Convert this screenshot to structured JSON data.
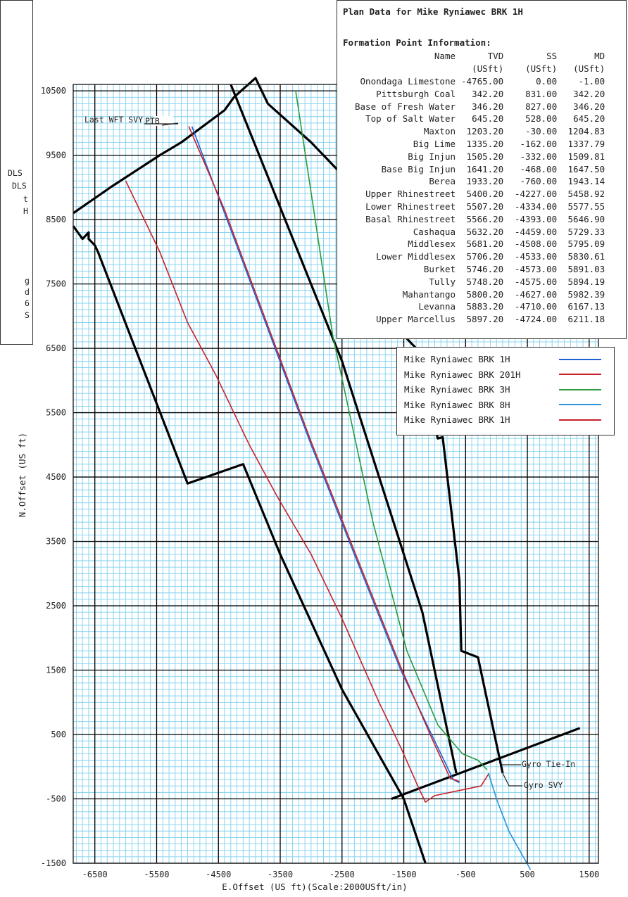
{
  "chart_data": {
    "type": "line",
    "xlabel": "E.Offset (US ft)(Scale:2000USft/in)",
    "ylabel": "N.Offset (US ft)",
    "xlim": [
      -6850,
      1650
    ],
    "ylim": [
      -1500,
      10600
    ],
    "x_ticks": [
      "-6500",
      "-5500",
      "-4500",
      "-3500",
      "-2500",
      "-1500",
      "-500",
      "500",
      "1500"
    ],
    "y_ticks": [
      "10500",
      "9500",
      "8500",
      "7500",
      "6500",
      "5500",
      "4500",
      "3500",
      "2500",
      "1500",
      "500",
      "-500",
      "-1500"
    ],
    "grid": true,
    "series": [
      {
        "name": "Mike Ryniawec BRK 1H",
        "color": "#1f5fd1",
        "x": [
          -4930,
          -4400,
          -3700,
          -3000,
          -2300,
          -1550,
          -1000,
          -700,
          -600
        ],
        "y": [
          9950,
          8600,
          6800,
          5000,
          3300,
          1500,
          400,
          -200,
          -250
        ]
      },
      {
        "name": "Mike Ryniawec BRK 201H",
        "color": "#c8202a",
        "x": [
          -6000,
          -5450,
          -5000,
          -4550,
          -4000,
          -3550,
          -3000,
          -2500,
          -1900,
          -1550,
          -1250,
          -1150,
          -1000,
          -250,
          -120
        ],
        "y": [
          9100,
          8000,
          6900,
          6100,
          5000,
          4200,
          3300,
          2300,
          1000,
          300,
          -350,
          -550,
          -450,
          -300,
          -100
        ]
      },
      {
        "name": "Mike Ryniawec BRK 3H",
        "color": "#2a9a3c",
        "x": [
          -3250,
          -2650,
          -2000,
          -1450,
          -950,
          -550,
          -300,
          -150
        ],
        "y": [
          10500,
          6700,
          3800,
          1800,
          650,
          200,
          100,
          -50
        ]
      },
      {
        "name": "Mike Ryniawec BRK 8H",
        "color": "#2a93d5",
        "x": [
          -130,
          0,
          200,
          550
        ],
        "y": [
          -100,
          -500,
          -1000,
          -1600
        ]
      },
      {
        "name": "Mike Ryniawec BRK 1H",
        "color": "#c8202a",
        "x": [
          -4980,
          -4400,
          -3700,
          -3000,
          -2300,
          -1550,
          -1050,
          -750,
          -600
        ],
        "y": [
          9950,
          8650,
          6850,
          5050,
          3350,
          1550,
          450,
          -180,
          -230
        ]
      }
    ],
    "annotations": [
      "PTB",
      "Last WFT SVY",
      "Gyro Tie-In",
      "Gyro SVY"
    ]
  },
  "boundaries": [
    {
      "x": [
        -6850,
        -6250,
        -5450,
        -5100,
        -4400,
        -4250,
        -3900,
        -3700,
        -3000,
        -2500,
        -2000
      ],
      "y": [
        8600,
        9000,
        9500,
        9700,
        10200,
        10400,
        10700,
        10300,
        9700,
        9200,
        8700
      ]
    },
    {
      "x": [
        -6850,
        -6700,
        -6600,
        -6600,
        -6500,
        -6450,
        -5000,
        -4100,
        -3500,
        -2500,
        -1500,
        -1150
      ],
      "y": [
        8400,
        8200,
        8300,
        8200,
        8100,
        8000,
        4400,
        4700,
        3300,
        1200,
        -500,
        -1500
      ]
    },
    {
      "x": [
        -4300,
        -2500,
        -1200,
        -650
      ],
      "y": [
        10600,
        6300,
        2400,
        -100
      ]
    },
    {
      "x": [
        -1700,
        1350
      ],
      "y": [
        -500,
        600
      ]
    },
    {
      "x": [
        -1500,
        -1200,
        -1050,
        -950,
        -870,
        -600,
        -570,
        -300,
        100
      ],
      "y": [
        6700,
        6400,
        5500,
        5100,
        5120,
        2900,
        1800,
        1700,
        -100
      ]
    }
  ],
  "formation": {
    "title": "Plan Data for Mike Ryniawec BRK 1H",
    "subtitle": "Formation Point Information:",
    "header": {
      "name": "Name",
      "tvd": "TVD",
      "ss": "SS",
      "md": "MD"
    },
    "units": {
      "tvd": "(USft)",
      "ss": "(USft)",
      "md": "(USft)"
    },
    "rows": [
      {
        "name": "Onondaga Limestone",
        "tvd": "-4765.00",
        "ss": "0.00",
        "md": "-1.00"
      },
      {
        "name": "Pittsburgh Coal",
        "tvd": "342.20",
        "ss": "831.00",
        "md": "342.20"
      },
      {
        "name": "Base of Fresh Water",
        "tvd": "346.20",
        "ss": "827.00",
        "md": "346.20"
      },
      {
        "name": "Top of Salt Water",
        "tvd": "645.20",
        "ss": "528.00",
        "md": "645.20"
      },
      {
        "name": "Maxton",
        "tvd": "1203.20",
        "ss": "-30.00",
        "md": "1204.83"
      },
      {
        "name": "Big Lime",
        "tvd": "1335.20",
        "ss": "-162.00",
        "md": "1337.79"
      },
      {
        "name": "Big Injun",
        "tvd": "1505.20",
        "ss": "-332.00",
        "md": "1509.81"
      },
      {
        "name": "Base Big Injun",
        "tvd": "1641.20",
        "ss": "-468.00",
        "md": "1647.50"
      },
      {
        "name": "Berea",
        "tvd": "1933.20",
        "ss": "-760.00",
        "md": "1943.14"
      },
      {
        "name": "Upper Rhinestreet",
        "tvd": "5400.20",
        "ss": "-4227.00",
        "md": "5458.92"
      },
      {
        "name": "Lower Rhinestreet",
        "tvd": "5507.20",
        "ss": "-4334.00",
        "md": "5577.55"
      },
      {
        "name": "Basal Rhinestreet",
        "tvd": "5566.20",
        "ss": "-4393.00",
        "md": "5646.90"
      },
      {
        "name": "Cashaqua",
        "tvd": "5632.20",
        "ss": "-4459.00",
        "md": "5729.33"
      },
      {
        "name": "Middlesex",
        "tvd": "5681.20",
        "ss": "-4508.00",
        "md": "5795.09"
      },
      {
        "name": "Lower Middlesex",
        "tvd": "5706.20",
        "ss": "-4533.00",
        "md": "5830.61"
      },
      {
        "name": "Burket",
        "tvd": "5746.20",
        "ss": "-4573.00",
        "md": "5891.03"
      },
      {
        "name": "Tully",
        "tvd": "5748.20",
        "ss": "-4575.00",
        "md": "5894.19"
      },
      {
        "name": "Mahantango",
        "tvd": "5800.20",
        "ss": "-4627.00",
        "md": "5982.39"
      },
      {
        "name": "Levanna",
        "tvd": "5883.20",
        "ss": "-4710.00",
        "md": "6167.13"
      },
      {
        "name": "Upper Marcellus",
        "tvd": "5897.20",
        "ss": "-4724.00",
        "md": "6211.18"
      }
    ]
  },
  "legend": [
    {
      "label": "Mike Ryniawec BRK 1H",
      "color": "#1f5fd1"
    },
    {
      "label": "Mike Ryniawec BRK 201H",
      "color": "#c8202a"
    },
    {
      "label": "Mike Ryniawec BRK 3H",
      "color": "#2a9a3c"
    },
    {
      "label": "Mike Ryniawec BRK 8H",
      "color": "#2a93d5"
    },
    {
      "label": "Mike Ryniawec BRK 1H",
      "color": "#c8202a"
    }
  ],
  "left_panel": {
    "frag1": "DLS",
    "frag2": "DLS",
    "frag3": "t",
    "frag4": "H",
    "frag5": "g",
    "frag6": "d",
    "frag7": "6",
    "frag8": "S"
  },
  "colors": {
    "grid_minor": "#7fd0ee",
    "grid_major": "#000000",
    "boundary": "#000000"
  }
}
